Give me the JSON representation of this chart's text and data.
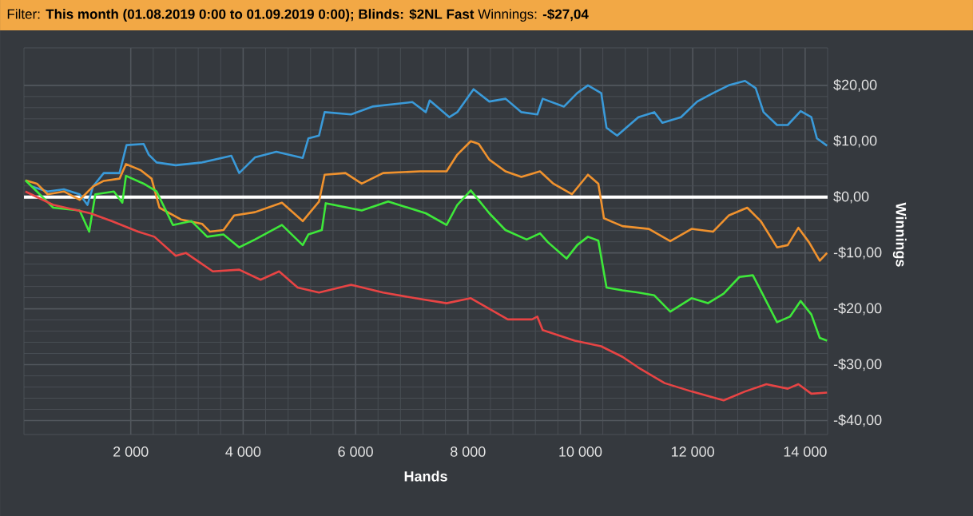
{
  "chart_data": {
    "type": "line",
    "title": "Filter: **This month (01.08.2019 0:00 to 01.09.2019 0:00); Blinds: $2NL Fast** Winnings: **-$27,04**",
    "xlabel": "Hands",
    "ylabel": "Winnings",
    "xlim": [
      100,
      14400
    ],
    "ylim": [
      -42.5,
      26.7
    ],
    "xticks": [
      {
        "value": 2000,
        "label": "2 000"
      },
      {
        "value": 4000,
        "label": "4 000"
      },
      {
        "value": 6000,
        "label": "6 000"
      },
      {
        "value": 8000,
        "label": "8 000"
      },
      {
        "value": 10000,
        "label": "10 000"
      },
      {
        "value": 12000,
        "label": "12 000"
      },
      {
        "value": 14000,
        "label": "14 000"
      }
    ],
    "yticks": [
      {
        "value": 20,
        "label": "$20,00"
      },
      {
        "value": 10,
        "label": "$10,00"
      },
      {
        "value": 0,
        "label": "$0,00"
      },
      {
        "value": -10,
        "label": "-$10,00"
      },
      {
        "value": -20,
        "label": "-$20,00"
      },
      {
        "value": -30,
        "label": "-$30,00"
      },
      {
        "value": -40,
        "label": "-$40,00"
      }
    ],
    "grid": true,
    "ref_lines": [
      {
        "axis": "y",
        "value": 0,
        "color": "#ffffff"
      }
    ],
    "series": [
      {
        "color": "#3a9ad9",
        "x": [
          240,
          520,
          810,
          1090,
          1230,
          1330,
          1520,
          1800,
          1925,
          2230,
          2320,
          2460,
          2800,
          3270,
          3790,
          3930,
          4210,
          4590,
          5060,
          5160,
          5350,
          5450,
          5920,
          6300,
          7010,
          7250,
          7320,
          7670,
          7810,
          8100,
          8380,
          8670,
          8951,
          9235,
          9330,
          9709,
          9943,
          10135,
          10372,
          10466,
          10655,
          11033,
          11317,
          11460,
          11790,
          12080,
          12360,
          12640,
          12930,
          13120,
          13260,
          13500,
          13690,
          13920,
          14110,
          14210,
          14390
        ],
        "values": [
          1.9,
          1.0,
          1.4,
          0.5,
          -1.4,
          1.9,
          4.3,
          4.3,
          9.3,
          9.5,
          7.6,
          6.2,
          5.7,
          6.2,
          7.4,
          4.3,
          7.1,
          8.1,
          7.0,
          10.5,
          11.0,
          15.2,
          14.8,
          16.2,
          17.0,
          15.2,
          17.3,
          14.3,
          15.2,
          19.3,
          17.1,
          17.6,
          15.2,
          14.8,
          17.6,
          16.2,
          18.6,
          20.0,
          18.6,
          12.4,
          11.0,
          14.3,
          15.2,
          13.3,
          14.3,
          17.1,
          18.6,
          20.0,
          20.8,
          19.5,
          15.2,
          12.9,
          12.9,
          15.4,
          14.3,
          10.5,
          9.2
        ]
      },
      {
        "color": "#f0922e",
        "x": [
          125,
          330,
          520,
          810,
          1090,
          1330,
          1520,
          1800,
          1915,
          2180,
          2370,
          2510,
          2890,
          3270,
          3410,
          3650,
          3840,
          4210,
          4690,
          5060,
          5350,
          5450,
          5820,
          6110,
          6490,
          7150,
          7620,
          7810,
          8050,
          8193,
          8380,
          8667,
          8951,
          9282,
          9520,
          9850,
          10135,
          10320,
          10420,
          10750,
          11220,
          11600,
          11980,
          12360,
          12640,
          12970,
          13210,
          13500,
          13690,
          13880,
          14070,
          14260,
          14390
        ],
        "values": [
          3.0,
          2.4,
          0.5,
          1.0,
          -0.5,
          1.9,
          2.9,
          3.3,
          5.9,
          4.8,
          3.3,
          -1.9,
          -4.0,
          -4.8,
          -6.2,
          -5.9,
          -3.3,
          -2.7,
          -1.0,
          -4.3,
          -0.8,
          4.0,
          4.3,
          2.4,
          4.3,
          4.6,
          4.6,
          7.6,
          10.0,
          9.5,
          6.7,
          4.6,
          3.6,
          4.6,
          2.4,
          0.5,
          4.0,
          2.4,
          -3.8,
          -5.2,
          -5.7,
          -7.9,
          -5.7,
          -6.2,
          -3.3,
          -1.9,
          -4.3,
          -9.0,
          -8.6,
          -5.5,
          -8.1,
          -11.4,
          -10.0
        ]
      },
      {
        "color": "#3ee83a",
        "x": [
          125,
          330,
          620,
          1090,
          1260,
          1370,
          1700,
          1850,
          1915,
          2230,
          2460,
          2750,
          3080,
          3360,
          3650,
          3930,
          4210,
          4690,
          5060,
          5160,
          5400,
          5470,
          6110,
          6580,
          7250,
          7620,
          7810,
          8050,
          8380,
          8667,
          9045,
          9282,
          9425,
          9756,
          9943,
          10135,
          10320,
          10466,
          10750,
          11033,
          11317,
          11600,
          11980,
          12270,
          12550,
          12830,
          13070,
          13210,
          13500,
          13730,
          13920,
          14110,
          14260,
          14390
        ],
        "values": [
          3.0,
          1.0,
          -1.9,
          -2.4,
          -6.2,
          0.5,
          1.0,
          -1.0,
          3.8,
          2.4,
          1.0,
          -5.0,
          -4.3,
          -7.1,
          -6.7,
          -9.0,
          -7.6,
          -5.0,
          -8.6,
          -6.7,
          -5.9,
          -1.1,
          -2.4,
          -0.8,
          -2.9,
          -5.0,
          -1.4,
          1.2,
          -2.9,
          -5.9,
          -7.6,
          -6.5,
          -8.1,
          -11.0,
          -8.6,
          -7.1,
          -7.8,
          -16.2,
          -16.7,
          -17.1,
          -17.6,
          -20.5,
          -18.1,
          -19.0,
          -17.3,
          -14.3,
          -14.0,
          -16.7,
          -22.4,
          -21.4,
          -18.6,
          -21.0,
          -25.2,
          -25.7
        ]
      },
      {
        "color": "#e84444",
        "x": [
          125,
          620,
          1280,
          1660,
          2130,
          2420,
          2800,
          2980,
          3460,
          3930,
          4310,
          4640,
          4970,
          5350,
          5920,
          6490,
          7060,
          7620,
          8050,
          8380,
          8710,
          9140,
          9235,
          9330,
          9900,
          10370,
          10750,
          11030,
          11500,
          11980,
          12550,
          12930,
          13310,
          13690,
          13880,
          14110,
          14390
        ],
        "values": [
          1.0,
          -1.4,
          -2.9,
          -4.3,
          -6.2,
          -7.1,
          -10.5,
          -10.0,
          -13.3,
          -13.0,
          -14.8,
          -13.3,
          -16.2,
          -17.1,
          -15.7,
          -17.1,
          -18.1,
          -19.0,
          -18.1,
          -20.0,
          -21.9,
          -21.9,
          -21.4,
          -23.8,
          -25.7,
          -26.7,
          -28.6,
          -30.5,
          -33.3,
          -34.8,
          -36.4,
          -34.8,
          -33.5,
          -34.3,
          -33.5,
          -35.2,
          -35.0
        ]
      }
    ]
  }
}
